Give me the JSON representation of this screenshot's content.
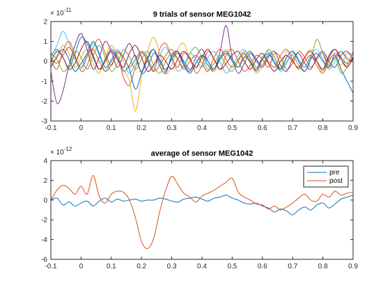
{
  "chart_data": [
    {
      "type": "line",
      "title": "9 trials of sensor MEG1042",
      "xlabel": "",
      "ylabel": "",
      "xlim": [
        -0.1,
        0.9
      ],
      "ylim": [
        -3,
        2
      ],
      "xticks": [
        "-0.1",
        "0",
        "0.1",
        "0.2",
        "0.3",
        "0.4",
        "0.5",
        "0.6",
        "0.7",
        "0.8",
        "0.9"
      ],
      "yticks": [
        "-3",
        "-2",
        "-1",
        "0",
        "1",
        "2"
      ],
      "y_multiplier": "× 10",
      "y_exponent": "-11",
      "grid": false,
      "legend": "none",
      "x": [
        -0.1,
        -0.08,
        -0.06,
        -0.04,
        -0.02,
        0.0,
        0.02,
        0.04,
        0.06,
        0.08,
        0.1,
        0.12,
        0.14,
        0.16,
        0.18,
        0.2,
        0.22,
        0.24,
        0.26,
        0.28,
        0.3,
        0.32,
        0.34,
        0.36,
        0.38,
        0.4,
        0.42,
        0.44,
        0.46,
        0.48,
        0.5,
        0.52,
        0.54,
        0.56,
        0.58,
        0.6,
        0.62,
        0.64,
        0.66,
        0.68,
        0.7,
        0.72,
        0.74,
        0.76,
        0.78,
        0.8,
        0.82,
        0.84,
        0.86,
        0.88,
        0.9
      ],
      "series": [
        {
          "color": "#0072BD",
          "values": [
            0.3,
            0.6,
            0.2,
            -0.3,
            0.4,
            1.2,
            0.9,
            0.2,
            -0.4,
            0.1,
            0.6,
            0.2,
            -0.5,
            -0.2,
            0.3,
            -0.6,
            -0.3,
            0.4,
            0.1,
            -0.5,
            0.2,
            0.5,
            0.0,
            -0.4,
            -0.1,
            0.3,
            -0.2,
            -0.5,
            0.1,
            0.4,
            0.0,
            -0.3,
            0.2,
            0.5,
            0.1,
            -0.2,
            0.3,
            0.0,
            -0.4,
            0.2,
            0.5,
            0.1,
            -0.3,
            0.2,
            0.0,
            -0.4,
            0.3,
            0.6,
            0.2,
            -0.1,
            0.2
          ]
        },
        {
          "color": "#D95319",
          "values": [
            0.1,
            -0.4,
            0.5,
            1.0,
            0.3,
            -0.5,
            -0.2,
            0.7,
            1.1,
            0.4,
            -0.2,
            0.3,
            -0.8,
            -1.2,
            -0.3,
            0.4,
            0.1,
            -0.5,
            0.6,
            0.9,
            0.2,
            -0.3,
            0.4,
            0.2,
            -0.6,
            -0.2,
            0.5,
            0.1,
            -0.4,
            0.3,
            0.6,
            0.0,
            -0.5,
            -0.2,
            0.3,
            0.1,
            -0.3,
            0.4,
            0.2,
            -0.4,
            -0.1,
            0.5,
            0.2,
            -0.3,
            0.1,
            0.4,
            -0.2,
            0.2,
            0.5,
            0.1,
            0.0
          ]
        },
        {
          "color": "#EDB120",
          "values": [
            -0.2,
            0.3,
            0.8,
            0.4,
            -0.3,
            0.2,
            0.6,
            -0.1,
            -0.6,
            0.2,
            0.8,
            0.3,
            -0.4,
            -1.0,
            -2.5,
            -0.8,
            0.5,
            1.2,
            0.4,
            -0.6,
            -0.2,
            0.6,
            0.9,
            0.1,
            -0.4,
            0.3,
            0.0,
            -0.5,
            0.2,
            0.6,
            0.1,
            -0.3,
            0.4,
            0.0,
            -0.6,
            -0.2,
            0.4,
            0.2,
            -0.3,
            0.5,
            0.1,
            -0.4,
            0.2,
            0.6,
            0.0,
            -0.5,
            0.1,
            0.3,
            -0.2,
            0.4,
            0.3
          ]
        },
        {
          "color": "#7E2F8E",
          "values": [
            -0.5,
            -2.1,
            -1.5,
            -0.2,
            0.8,
            1.4,
            0.6,
            -0.4,
            0.2,
            1.0,
            0.5,
            -0.3,
            0.3,
            0.9,
            0.2,
            -0.5,
            0.1,
            0.6,
            -0.2,
            -0.6,
            0.3,
            0.5,
            -0.1,
            -0.5,
            0.2,
            0.6,
            0.0,
            -0.4,
            0.5,
            1.8,
            0.2,
            -0.6,
            -0.1,
            0.4,
            0.0,
            -0.3,
            0.2,
            0.5,
            -0.2,
            -0.5,
            0.1,
            0.4,
            -0.1,
            -0.4,
            0.2,
            0.5,
            0.0,
            -0.3,
            0.3,
            0.5,
            0.1
          ]
        },
        {
          "color": "#77AC30",
          "values": [
            0.4,
            0.1,
            -0.5,
            -0.2,
            0.5,
            0.2,
            -0.4,
            0.3,
            0.8,
            0.2,
            -0.5,
            -0.1,
            0.6,
            0.2,
            -0.4,
            0.1,
            0.5,
            -0.2,
            -0.6,
            0.0,
            0.4,
            0.1,
            -0.3,
            0.4,
            0.7,
            0.2,
            -0.4,
            -0.1,
            0.3,
            -0.2,
            -0.5,
            0.0,
            0.5,
            0.2,
            -0.3,
            0.1,
            0.6,
            0.2,
            -0.4,
            0.0,
            0.3,
            -0.2,
            -0.5,
            0.1,
            1.1,
            0.4,
            -0.3,
            0.2,
            -0.6,
            -0.3,
            0.1
          ]
        },
        {
          "color": "#4DBEEE",
          "values": [
            0.2,
            0.8,
            1.5,
            0.9,
            0.1,
            -0.4,
            0.2,
            0.9,
            0.3,
            -0.5,
            0.1,
            0.6,
            0.0,
            -0.6,
            -0.1,
            0.5,
            0.2,
            -0.4,
            0.3,
            0.7,
            0.1,
            -0.5,
            -0.2,
            0.4,
            0.1,
            -0.3,
            0.2,
            0.5,
            0.0,
            -0.6,
            -0.2,
            0.3,
            0.6,
            0.1,
            -0.4,
            0.2,
            0.5,
            0.0,
            -0.5,
            -0.1,
            0.4,
            0.1,
            -0.3,
            0.3,
            0.6,
            0.1,
            -0.4,
            0.0,
            0.5,
            0.2,
            0.0
          ]
        },
        {
          "color": "#A2142F",
          "values": [
            0.0,
            0.5,
            0.2,
            -0.4,
            -0.1,
            0.6,
            1.0,
            0.3,
            -0.4,
            0.0,
            0.5,
            0.1,
            -0.3,
            0.4,
            0.8,
            0.2,
            -0.5,
            -0.2,
            0.3,
            0.0,
            -0.4,
            0.1,
            0.5,
            0.1,
            -0.3,
            0.2,
            0.6,
            0.1,
            -0.4,
            -0.1,
            0.3,
            0.5,
            0.0,
            -0.4,
            0.1,
            0.4,
            -0.1,
            -0.5,
            0.0,
            0.3,
            0.0,
            -0.3,
            0.2,
            0.5,
            0.0,
            -0.4,
            0.2,
            0.6,
            0.1,
            -0.3,
            0.2
          ]
        },
        {
          "color": "#0072BD",
          "values": [
            -0.3,
            0.2,
            0.6,
            0.1,
            -0.5,
            -0.1,
            0.4,
            1.0,
            0.4,
            -0.3,
            0.0,
            0.5,
            0.2,
            -0.4,
            -1.4,
            -0.6,
            0.2,
            0.6,
            0.0,
            -0.4,
            0.1,
            0.4,
            -0.2,
            -0.6,
            -0.1,
            0.3,
            0.0,
            -0.4,
            0.2,
            0.5,
            0.1,
            -0.3,
            0.2,
            0.0,
            -0.5,
            0.1,
            0.4,
            -0.1,
            -0.4,
            0.2,
            0.5,
            0.0,
            -0.5,
            0.1,
            0.4,
            0.0,
            -0.3,
            0.3,
            -0.4,
            -1.0,
            -1.6
          ]
        },
        {
          "color": "#D95319",
          "values": [
            0.2,
            -0.1,
            0.3,
            0.7,
            0.2,
            -0.3,
            0.3,
            0.6,
            0.0,
            -0.5,
            -0.2,
            0.4,
            0.2,
            -0.3,
            0.1,
            0.5,
            0.0,
            -0.5,
            -0.2,
            0.3,
            0.6,
            0.1,
            -0.4,
            0.0,
            0.3,
            -0.1,
            -0.5,
            0.2,
            0.6,
            0.1,
            -0.3,
            0.1,
            0.4,
            -0.1,
            -0.4,
            0.2,
            0.0,
            -0.3,
            0.3,
            0.6,
            0.1,
            -0.4,
            0.0,
            0.3,
            -0.2,
            -0.6,
            0.0,
            0.4,
            0.1,
            -0.2,
            0.5
          ]
        }
      ]
    },
    {
      "type": "line",
      "title": "average of sensor MEG1042",
      "xlabel": "",
      "ylabel": "",
      "xlim": [
        -0.1,
        0.9
      ],
      "ylim": [
        -6,
        4
      ],
      "xticks": [
        "-0.1",
        "0",
        "0.1",
        "0.2",
        "0.3",
        "0.4",
        "0.5",
        "0.6",
        "0.7",
        "0.8",
        "0.9"
      ],
      "yticks": [
        "-6",
        "-4",
        "-2",
        "0",
        "2",
        "4"
      ],
      "y_multiplier": "× 10",
      "y_exponent": "-12",
      "grid": false,
      "legend": "top-right",
      "x": [
        -0.1,
        -0.08,
        -0.06,
        -0.04,
        -0.02,
        0.0,
        0.02,
        0.04,
        0.06,
        0.08,
        0.1,
        0.12,
        0.14,
        0.16,
        0.18,
        0.2,
        0.22,
        0.24,
        0.26,
        0.28,
        0.3,
        0.32,
        0.34,
        0.36,
        0.38,
        0.4,
        0.42,
        0.44,
        0.46,
        0.48,
        0.5,
        0.52,
        0.54,
        0.56,
        0.58,
        0.6,
        0.62,
        0.64,
        0.66,
        0.68,
        0.7,
        0.72,
        0.74,
        0.76,
        0.78,
        0.8,
        0.82,
        0.84,
        0.86,
        0.88,
        0.9
      ],
      "series": [
        {
          "name": "pre",
          "color": "#0072BD",
          "values": [
            0.0,
            0.2,
            -0.5,
            -0.2,
            -0.6,
            -0.3,
            -0.1,
            -0.6,
            -0.1,
            0.2,
            -0.2,
            0.1,
            -0.1,
            0.0,
            0.1,
            -0.1,
            0.0,
            0.0,
            0.2,
            0.1,
            -0.1,
            -0.2,
            0.1,
            0.2,
            0.3,
            0.1,
            -0.1,
            0.2,
            0.3,
            0.5,
            0.2,
            0.0,
            -0.3,
            -0.4,
            -0.3,
            -0.6,
            -0.8,
            -1.2,
            -0.9,
            -1.1,
            -1.5,
            -1.0,
            -0.7,
            -1.0,
            -0.5,
            -0.3,
            -0.8,
            -0.4,
            0.1,
            0.3,
            0.5
          ]
        },
        {
          "name": "post",
          "color": "#D95319",
          "values": [
            0.0,
            1.0,
            1.5,
            1.2,
            0.6,
            1.4,
            0.6,
            2.5,
            0.4,
            -0.3,
            0.6,
            0.9,
            0.8,
            0.0,
            -1.8,
            -4.2,
            -4.9,
            -3.9,
            -1.2,
            1.0,
            2.4,
            1.6,
            0.7,
            0.3,
            -0.2,
            0.4,
            0.7,
            1.0,
            1.4,
            1.8,
            2.2,
            0.8,
            0.3,
            0.0,
            -0.4,
            -0.5,
            -0.9,
            -0.6,
            -1.0,
            -0.7,
            -0.3,
            0.2,
            0.6,
            0.0,
            -0.1,
            0.6,
            0.3,
            0.9,
            0.5,
            0.7,
            0.8
          ]
        }
      ]
    }
  ]
}
